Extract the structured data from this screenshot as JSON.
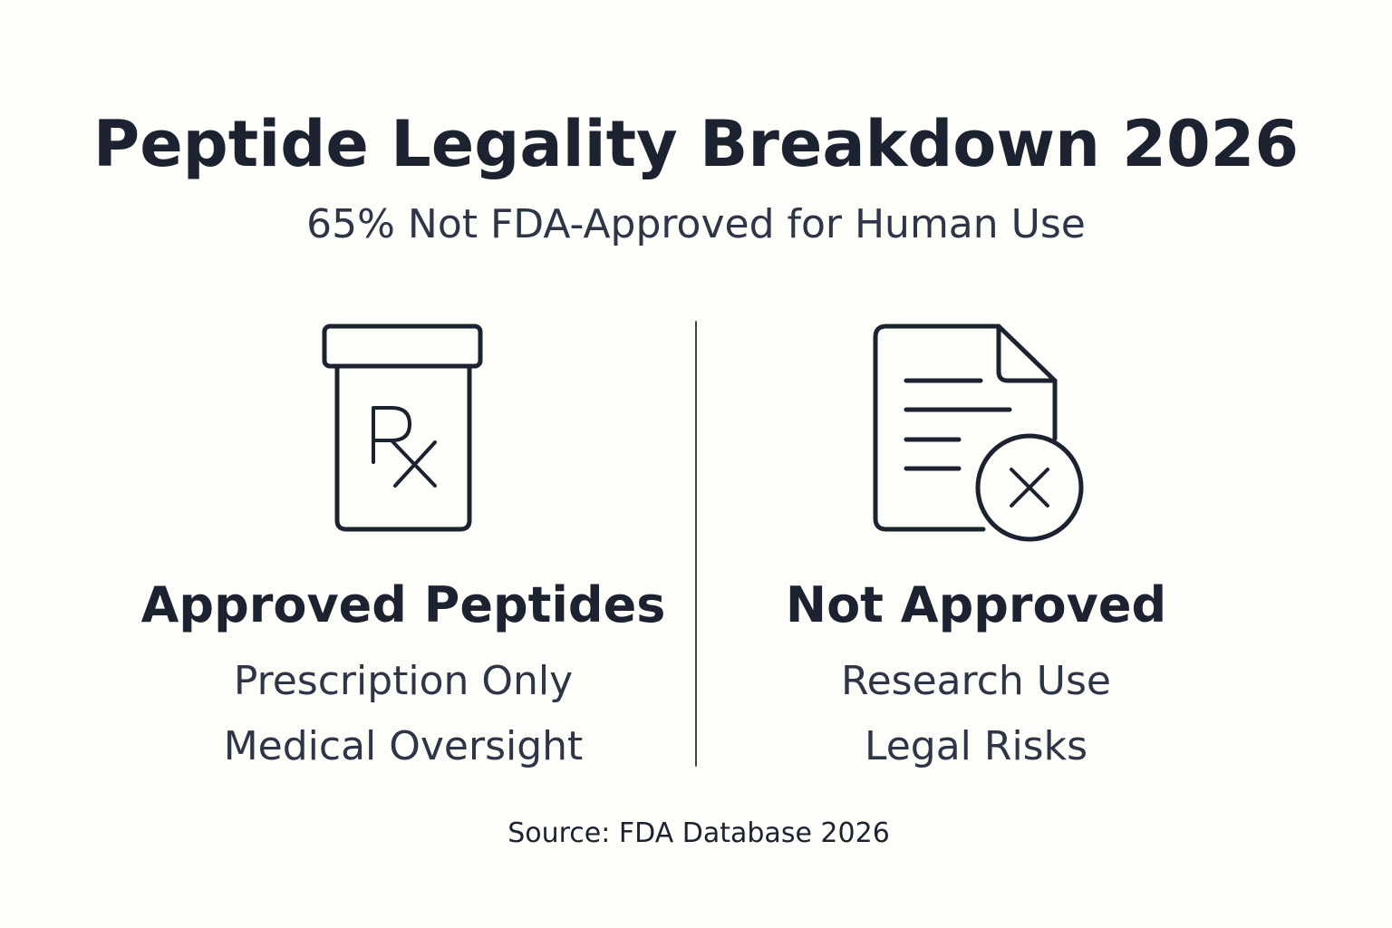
{
  "header": {
    "title": "Peptide Legality Breakdown 2026",
    "subtitle": "65% Not FDA-Approved for Human Use"
  },
  "columns": [
    {
      "heading": "Approved Peptides",
      "lines": [
        "Prescription Only",
        "Medical Oversight"
      ]
    },
    {
      "heading": "Not Approved",
      "lines": [
        "Research Use",
        "Legal Risks"
      ]
    }
  ],
  "footer": {
    "source": "Source: FDA Database 2026"
  }
}
